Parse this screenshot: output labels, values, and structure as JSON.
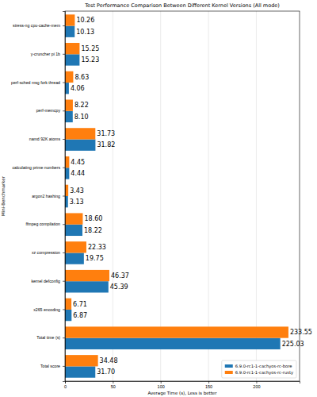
{
  "chart_data": {
    "type": "bar",
    "orientation": "horizontal",
    "title": "Test Performance Comparison Between Different Kernel Versions (All mode)",
    "x_label": "Average Time (s), Less is better",
    "y_label": "Mini-Benchmarker",
    "categories": [
      "stress-ng cpu-cache-mem",
      "y-cruncher pi 1b",
      "perf-sched msg fork thread",
      "perf-memcpy",
      "namd 92K atoms",
      "calculating prime numbers",
      "argon2 hashing",
      "ffmpeg compilation",
      "xz compression",
      "kernel defconfig",
      "x265 encoding",
      "Total time (s)",
      "Total score"
    ],
    "series": [
      {
        "name": "6.9.0-rc1-1-cachyos-rc-bore",
        "color": "#1f77b4",
        "values": [
          10.13,
          15.23,
          4.06,
          8.1,
          31.82,
          4.44,
          3.13,
          18.22,
          19.75,
          45.39,
          6.87,
          225.03,
          31.7
        ],
        "value_labels": [
          "10.13",
          "15.23",
          "4.06",
          "8.10",
          "31.82",
          "4.44",
          "3.13",
          "18.22",
          "19.75",
          "45.39",
          "6.87",
          "225.03",
          "31.70"
        ]
      },
      {
        "name": "6.9.0-rc1-1-cachyos-rc-rusty",
        "color": "#ff7f0e",
        "values": [
          10.26,
          15.25,
          8.63,
          8.22,
          31.73,
          4.45,
          3.43,
          18.6,
          22.33,
          46.37,
          6.71,
          233.55,
          34.48
        ],
        "value_labels": [
          "10.26",
          "15.25",
          "8.63",
          "8.22",
          "31.73",
          "4.45",
          "3.43",
          "18.60",
          "22.33",
          "46.37",
          "6.71",
          "233.55",
          "34.48"
        ]
      }
    ],
    "xlim": [
      0,
      245.2
    ],
    "xticks": [
      0,
      50,
      100,
      150,
      200
    ],
    "grid": true,
    "data_labels": true,
    "legend": "lower right"
  }
}
